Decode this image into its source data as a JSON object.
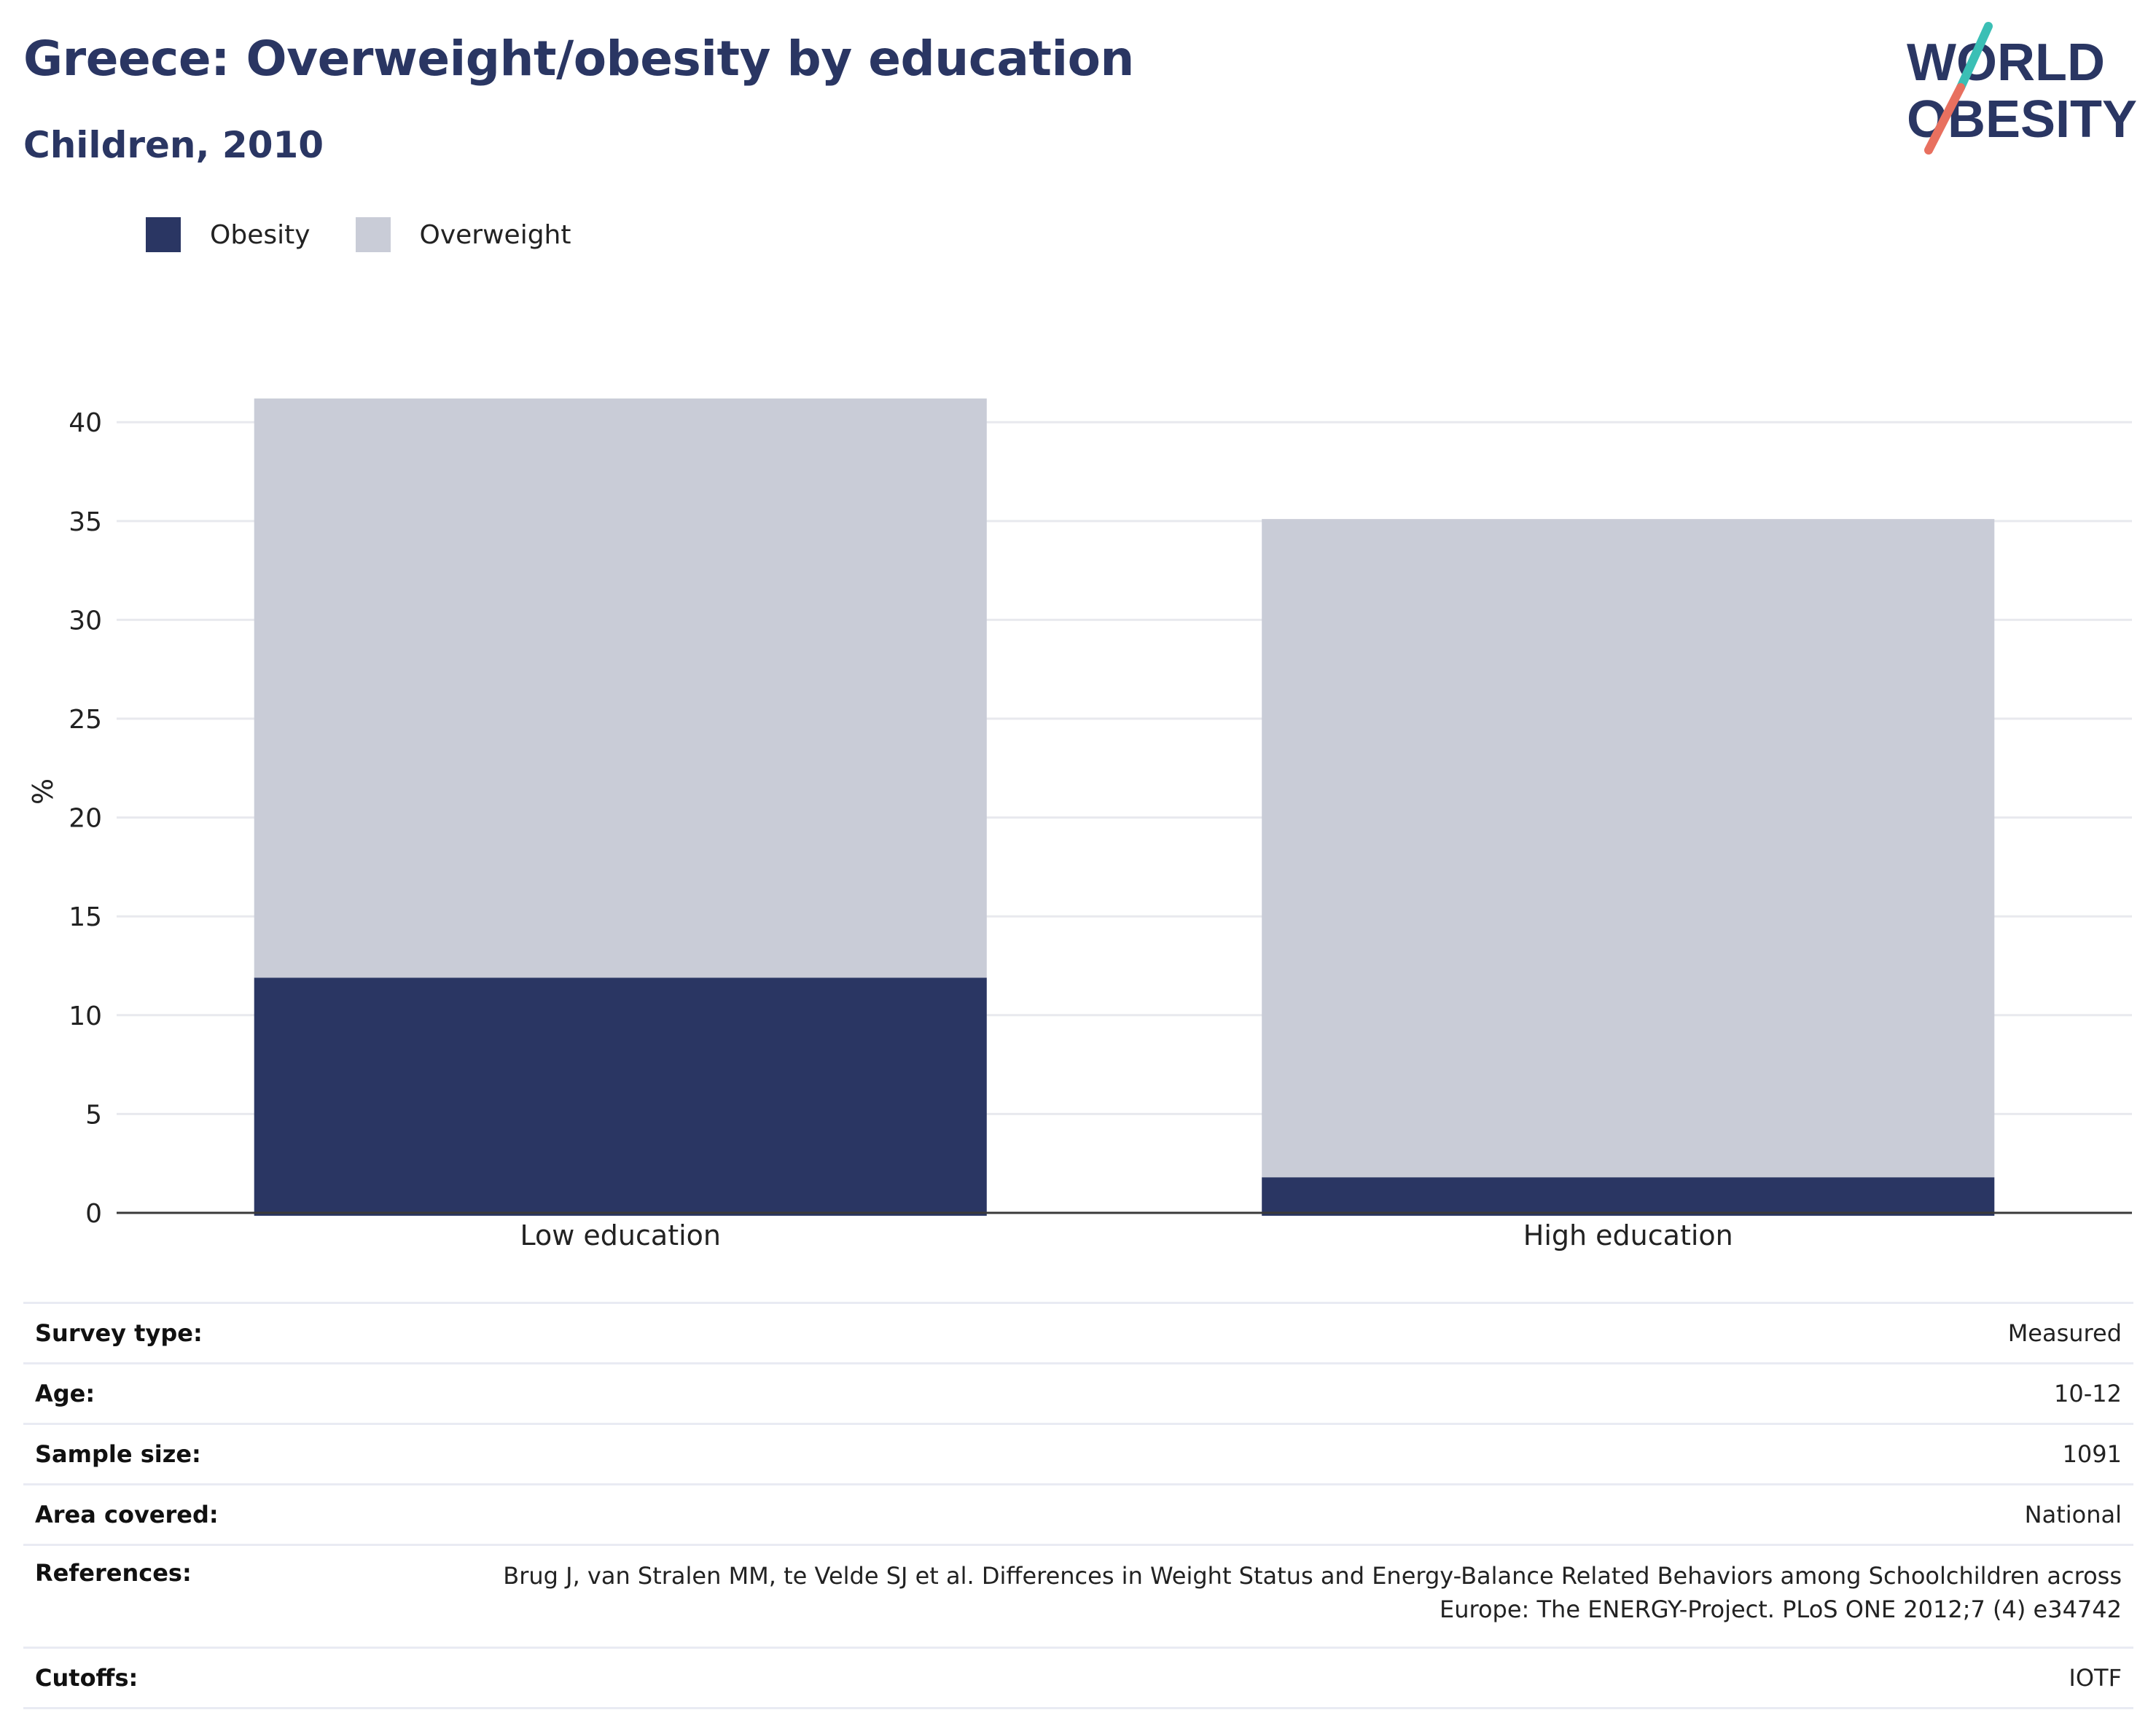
{
  "title": "Greece: Overweight/obesity by education",
  "subtitle": "Children, 2010",
  "logo": {
    "line1": "WORLD",
    "line2": "OBESITY",
    "colors": {
      "text": "#2a3663",
      "slash_top": "#3bbfb5",
      "slash_bottom": "#e8705f"
    }
  },
  "legend": [
    {
      "label": "Obesity",
      "color": "#2a3663"
    },
    {
      "label": "Overweight",
      "color": "#c9ccd7"
    }
  ],
  "chart_data": {
    "type": "bar",
    "stacked": true,
    "categories": [
      "Low education",
      "High education"
    ],
    "series": [
      {
        "name": "Obesity",
        "color": "#2a3663",
        "values": [
          11.9,
          1.8
        ]
      },
      {
        "name": "Overweight",
        "color": "#c9ccd7",
        "values": [
          29.3,
          33.3
        ]
      }
    ],
    "ylabel": "%",
    "ylim": [
      0,
      42
    ],
    "yticks": [
      0,
      5,
      10,
      15,
      20,
      25,
      30,
      35,
      40
    ],
    "grid": true,
    "legend_position": "top-left"
  },
  "info": [
    {
      "key": "Survey type:",
      "value": "Measured"
    },
    {
      "key": "Age:",
      "value": "10-12"
    },
    {
      "key": "Sample size:",
      "value": "1091"
    },
    {
      "key": "Area covered:",
      "value": "National"
    },
    {
      "key": "References:",
      "value": "Brug J, van Stralen MM, te Velde SJ et al. Differences in Weight Status and Energy-Balance Related Behaviors among Schoolchildren across Europe: The ENERGY-Project. PLoS ONE 2012;7 (4) e34742"
    },
    {
      "key": "Cutoffs:",
      "value": "IOTF"
    }
  ]
}
